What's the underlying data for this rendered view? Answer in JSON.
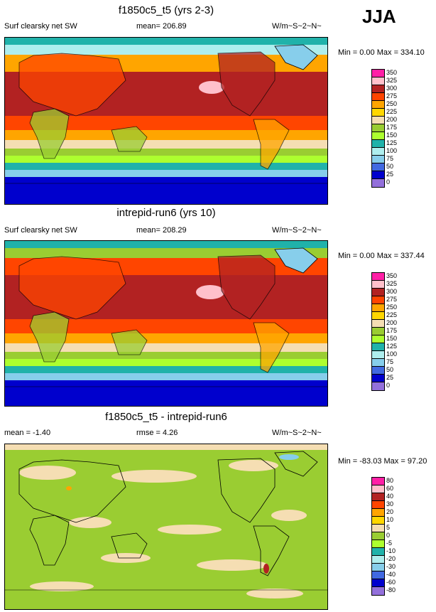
{
  "season": "JJA",
  "panels": [
    {
      "title": "f1850c5_t5 (yrs 2-3)",
      "left_text": "Surf clearsky net SW",
      "center_text": "mean= 206.89",
      "right_text": "W/m~S~2~N~",
      "minmax_text": "Min =   0.00 Max = 334.10",
      "labels": [
        "350",
        "325",
        "300",
        "275",
        "250",
        "225",
        "200",
        "175",
        "150",
        "125",
        "100",
        "75",
        "50",
        "25",
        "0"
      ]
    },
    {
      "title": "intrepid-run6 (yrs 10)",
      "left_text": "Surf clearsky net SW",
      "center_text": "mean= 208.29",
      "right_text": "W/m~S~2~N~",
      "minmax_text": "Min =   0.00 Max = 337.44",
      "labels": [
        "350",
        "325",
        "300",
        "275",
        "250",
        "225",
        "200",
        "175",
        "150",
        "125",
        "100",
        "75",
        "50",
        "25",
        "0"
      ]
    },
    {
      "title": "f1850c5_t5 - intrepid-run6",
      "left_text": "mean =  -1.40",
      "center_text": "rmse =   4.26",
      "right_text": "W/m~S~2~N~",
      "minmax_text": "Min = -83.03 Max =  97.20",
      "labels": [
        "80",
        "60",
        "40",
        "30",
        "20",
        "10",
        "5",
        "0",
        "-5",
        "-10",
        "-20",
        "-30",
        "-40",
        "-60",
        "-80"
      ]
    }
  ],
  "palette": [
    "#ff1fa6",
    "#ffc0cb",
    "#b22222",
    "#ff4500",
    "#ffa500",
    "#ffd700",
    "#f5deb3",
    "#9acd32",
    "#adff2f",
    "#20b2aa",
    "#aeeeee",
    "#87ceeb",
    "#4169e1",
    "#0000cd",
    "#9370db"
  ]
}
